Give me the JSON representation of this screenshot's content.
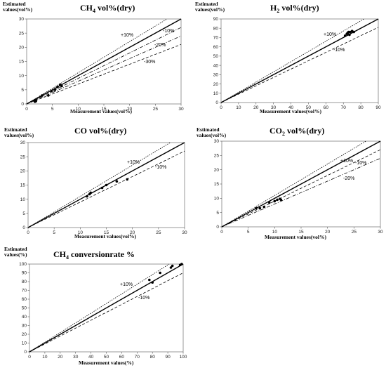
{
  "chart_data": [
    {
      "type": "scatter",
      "title_main": "CH",
      "title_sub": "4",
      "title_rest": " vol%(dry)",
      "ylabel_line1": "Estimated",
      "ylabel_line2": "values(vol%)",
      "xlabel": "Measurement values(vol%)",
      "xlim": [
        0,
        30
      ],
      "ylim": [
        0,
        30
      ],
      "xticks": [
        0,
        5,
        10,
        15,
        20,
        25,
        30
      ],
      "yticks": [
        0,
        5,
        10,
        15,
        20,
        25,
        30
      ],
      "reference_lines": [
        {
          "label": "",
          "slope": 1.0,
          "style": "solid"
        },
        {
          "label": "+10%",
          "slope": 1.1,
          "style": "dotted"
        },
        {
          "label": "-10%",
          "slope": 0.9,
          "style": "dashdot"
        },
        {
          "label": "-20%",
          "slope": 0.8,
          "style": "dashdot"
        },
        {
          "label": "-30%",
          "slope": 0.7,
          "style": "dashed"
        }
      ],
      "points": [
        [
          1.6,
          0.8
        ],
        [
          1.8,
          1.0
        ],
        [
          1.8,
          1.5
        ],
        [
          3.0,
          3.0
        ],
        [
          4.2,
          3.0
        ],
        [
          4.8,
          4.5
        ],
        [
          5.5,
          5.0
        ],
        [
          6.0,
          6.0
        ],
        [
          6.5,
          6.8
        ],
        [
          6.8,
          6.3
        ]
      ]
    },
    {
      "type": "scatter",
      "title_main": "H",
      "title_sub": "2",
      "title_rest": " vol%(dry)",
      "ylabel_line1": "Estimated",
      "ylabel_line2": "values(vol%)",
      "xlabel": "Measurement values(vol%)",
      "xlim": [
        0,
        90
      ],
      "ylim": [
        0,
        90
      ],
      "xticks": [
        0,
        10,
        20,
        30,
        40,
        50,
        60,
        70,
        80,
        90
      ],
      "yticks": [
        0,
        10,
        20,
        30,
        40,
        50,
        60,
        70,
        80,
        90
      ],
      "reference_lines": [
        {
          "label": "",
          "slope": 1.0,
          "style": "solid"
        },
        {
          "label": "+10%",
          "slope": 1.1,
          "style": "dotted"
        },
        {
          "label": "-10%",
          "slope": 0.9,
          "style": "dashed"
        }
      ],
      "points": [
        [
          71,
          72
        ],
        [
          72,
          74
        ],
        [
          72.5,
          75
        ],
        [
          73,
          76
        ],
        [
          74,
          76
        ],
        [
          75,
          77
        ],
        [
          76,
          76
        ],
        [
          73.5,
          73
        ]
      ]
    },
    {
      "type": "scatter",
      "title_main": "CO vol%(dry)",
      "title_sub": "",
      "title_rest": "",
      "ylabel_line1": "Estimated",
      "ylabel_line2": "values(vol%)",
      "xlabel": "Measurement values(vol%)",
      "xlim": [
        0,
        30
      ],
      "ylim": [
        0,
        30
      ],
      "xticks": [
        0,
        5,
        10,
        15,
        20,
        25,
        30
      ],
      "yticks": [
        0,
        5,
        10,
        15,
        20,
        25,
        30
      ],
      "reference_lines": [
        {
          "label": "",
          "slope": 1.0,
          "style": "solid"
        },
        {
          "label": "+10%",
          "slope": 1.1,
          "style": "dotted"
        },
        {
          "label": "-10%",
          "slope": 0.9,
          "style": "dashed"
        }
      ],
      "points": [
        [
          11.3,
          11.0
        ],
        [
          11.8,
          11.8
        ],
        [
          12.0,
          12.3
        ],
        [
          14.2,
          14.0
        ],
        [
          15.0,
          15.0
        ],
        [
          17.0,
          16.3
        ],
        [
          19.0,
          17.0
        ]
      ]
    },
    {
      "type": "scatter",
      "title_main": "CO",
      "title_sub": "2",
      "title_rest": " vol%(dry)",
      "ylabel_line1": "Estimated",
      "ylabel_line2": "values(vol%)",
      "xlabel": "Measurement values(vol%)",
      "xlim": [
        0,
        30
      ],
      "ylim": [
        0,
        30
      ],
      "xticks": [
        0,
        5,
        10,
        15,
        20,
        25,
        30
      ],
      "yticks": [
        0,
        5,
        10,
        15,
        20,
        25,
        30
      ],
      "reference_lines": [
        {
          "label": "",
          "slope": 1.0,
          "style": "solid"
        },
        {
          "label": "+10%",
          "slope": 1.1,
          "style": "dotted"
        },
        {
          "label": "-10%",
          "slope": 0.9,
          "style": "dashed"
        },
        {
          "label": "-20%",
          "slope": 0.8,
          "style": "dashdot"
        }
      ],
      "points": [
        [
          6.5,
          6.5
        ],
        [
          7.2,
          6.5
        ],
        [
          8.0,
          7.0
        ],
        [
          9.0,
          8.5
        ],
        [
          10.0,
          9.0
        ],
        [
          10.5,
          9.5
        ],
        [
          11.0,
          9.8
        ],
        [
          11.2,
          9.5
        ]
      ]
    },
    {
      "type": "scatter",
      "title_main": "CH",
      "title_sub": "4",
      "title_rest": " conversionrate  %",
      "ylabel_line1": "Estimated",
      "ylabel_line2": "values(%)",
      "xlabel": "Measurement values(%)",
      "xlim": [
        0,
        100
      ],
      "ylim": [
        0,
        100
      ],
      "xticks": [
        0,
        10,
        20,
        30,
        40,
        50,
        60,
        70,
        80,
        90,
        100
      ],
      "yticks": [
        0,
        10,
        20,
        30,
        40,
        50,
        60,
        70,
        80,
        90,
        100
      ],
      "reference_lines": [
        {
          "label": "",
          "slope": 1.0,
          "style": "solid"
        },
        {
          "label": "+10%",
          "slope": 1.1,
          "style": "dotted"
        },
        {
          "label": "-10%",
          "slope": 0.9,
          "style": "dashed"
        }
      ],
      "points": [
        [
          78,
          82
        ],
        [
          80,
          79
        ],
        [
          85,
          90
        ],
        [
          92,
          96
        ],
        [
          93,
          98
        ],
        [
          98,
          99
        ],
        [
          99,
          100
        ]
      ]
    }
  ]
}
